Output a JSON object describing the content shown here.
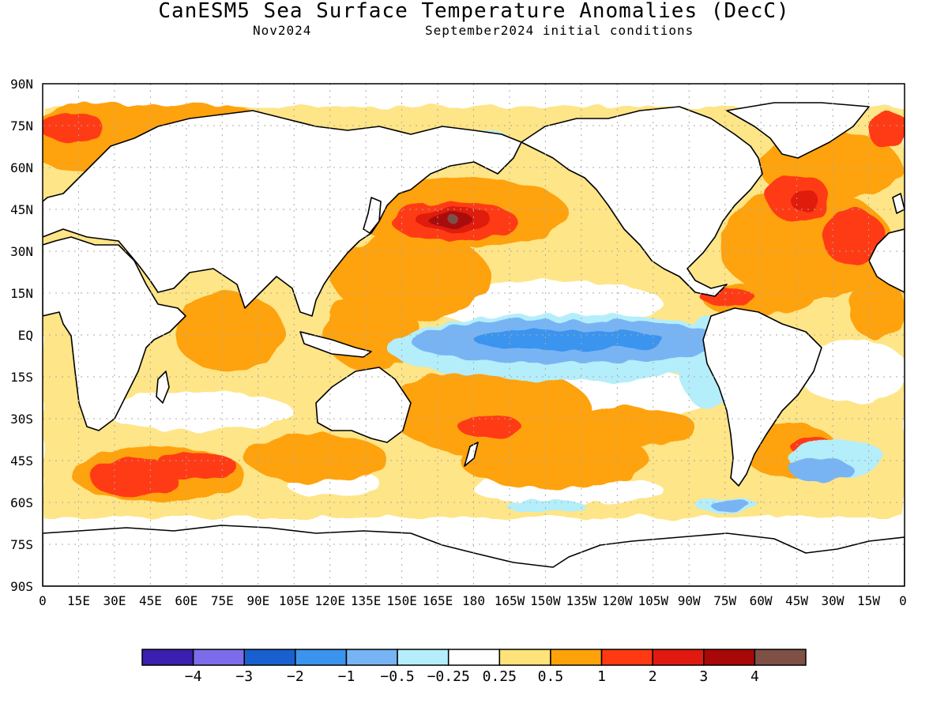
{
  "title": "CanESM5 Sea Surface Temperature Anomalies (DecC)",
  "forecast_month": "Nov2024",
  "initial_conditions": "September2024 initial conditions",
  "lat_labels": [
    "90N",
    "75N",
    "60N",
    "45N",
    "30N",
    "15N",
    "EQ",
    "15S",
    "30S",
    "45S",
    "60S",
    "75S",
    "90S"
  ],
  "lon_labels": [
    "0",
    "15E",
    "30E",
    "45E",
    "60E",
    "75E",
    "90E",
    "105E",
    "120E",
    "135E",
    "150E",
    "165E",
    "180",
    "165W",
    "150W",
    "135W",
    "120W",
    "105W",
    "90W",
    "75W",
    "60W",
    "45W",
    "30W",
    "15W",
    "0"
  ],
  "legend": {
    "colors": [
      "#3b1fb0",
      "#7d6cea",
      "#1860d0",
      "#3a94ee",
      "#78b4f4",
      "#b4eefa",
      "#ffffff",
      "#fee27a",
      "#fea20a",
      "#ff3a12",
      "#e01a10",
      "#a80808",
      "#7e5046"
    ],
    "labels": [
      "−4",
      "−3",
      "−2",
      "−1",
      "−0.5",
      "−0.25",
      "0.25",
      "0.5",
      "1",
      "2",
      "3",
      "4"
    ]
  },
  "colors": {
    "land": "#ffffff",
    "coast": "#000000",
    "grid": "#aaaaaa"
  }
}
